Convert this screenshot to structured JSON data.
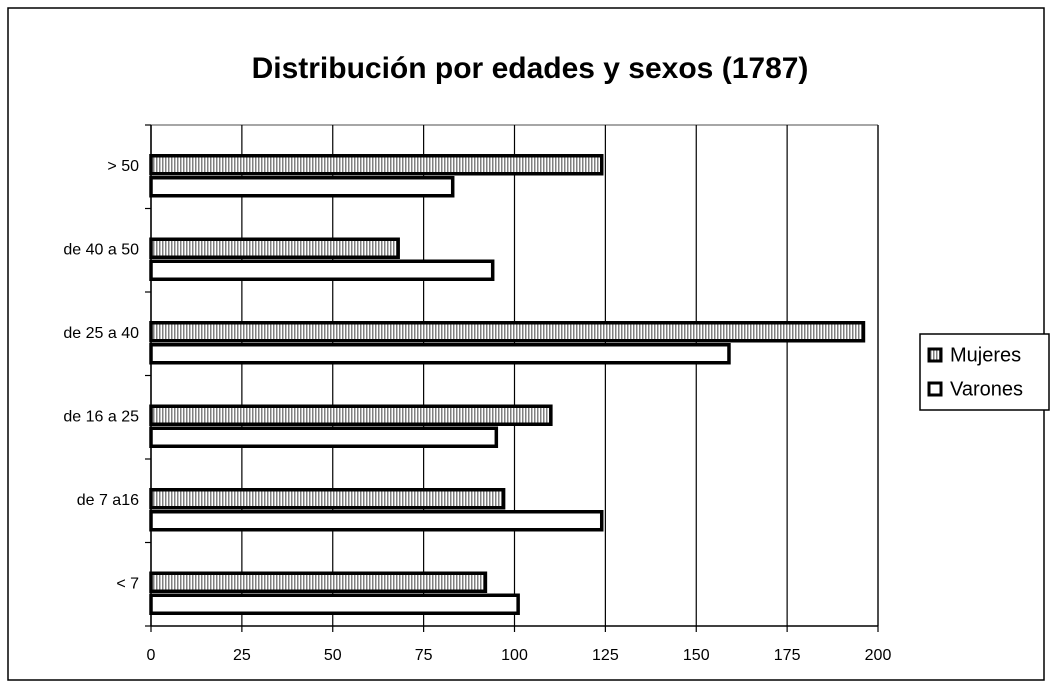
{
  "chart_data": {
    "type": "bar",
    "orientation": "horizontal",
    "title": "Distribución por edades y sexos (1787)",
    "categories": [
      "< 7",
      "de 7 a16",
      "de 16 a 25",
      "de 25 a 40",
      "de 40 a 50",
      "> 50"
    ],
    "series": [
      {
        "name": "Mujeres",
        "color": "#808080",
        "values": [
          92,
          97,
          110,
          196,
          68,
          124
        ]
      },
      {
        "name": "Varones",
        "color": "#ffffff",
        "values": [
          101,
          124,
          95,
          159,
          94,
          83
        ]
      }
    ],
    "xlim": [
      0,
      200
    ],
    "xticks": [
      0,
      25,
      50,
      75,
      100,
      125,
      150,
      175,
      200
    ],
    "grid": true,
    "legend": "right"
  }
}
